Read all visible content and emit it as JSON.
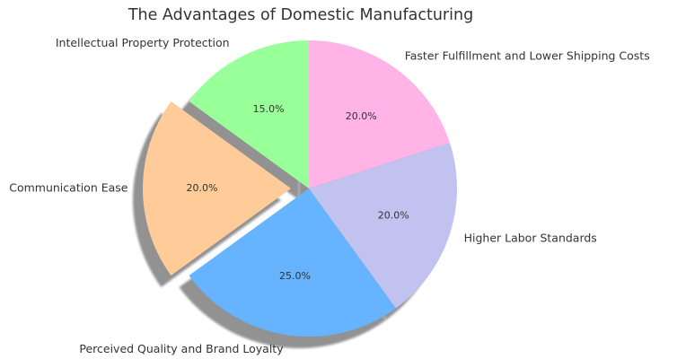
{
  "chart_data": {
    "type": "pie",
    "title": "The Advantages of Domestic Manufacturing",
    "start_angle_deg": 90,
    "direction": "counterclockwise",
    "shadow": true,
    "slices": [
      {
        "label": "Intellectual Property Protection",
        "value": 15.0,
        "pct_label": "15.0%",
        "color": "#99ff99",
        "explode": false
      },
      {
        "label": "Communication Ease",
        "value": 20.0,
        "pct_label": "20.0%",
        "color": "#ffcc99",
        "explode": true
      },
      {
        "label": "Perceived Quality and Brand Loyalty",
        "value": 25.0,
        "pct_label": "25.0%",
        "color": "#66b3ff",
        "explode": false
      },
      {
        "label": "Higher Labor Standards",
        "value": 20.0,
        "pct_label": "20.0%",
        "color": "#c2c2f0",
        "explode": false
      },
      {
        "label": "Faster Fulfillment and Lower Shipping Costs",
        "value": 20.0,
        "pct_label": "20.0%",
        "color": "#ffb3e6",
        "explode": false
      }
    ]
  }
}
